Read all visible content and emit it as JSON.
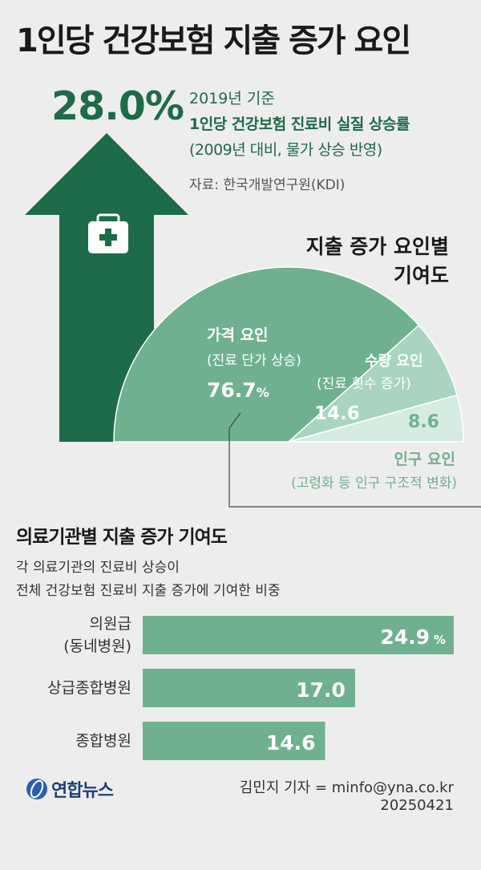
{
  "title": "1인당 건강보험 지출 증가 요인",
  "headline": {
    "value": "28.0%",
    "basis": "2019년 기준",
    "label": "1인당 건강보험 진료비 실질 상승률",
    "note": "(2009년 대비, 물가 상승 반영)",
    "source": "자료: 한국개발연구원(KDI)"
  },
  "contribution_title_line1": "지출 증가 요인별",
  "contribution_title_line2": "기여도",
  "colors": {
    "dark_green": "#1e6b4a",
    "mid_green": "#6fb18f",
    "light_green": "#a8d4c1",
    "pale_green": "#d6ebe1",
    "background": "#ededed"
  },
  "icons": [
    "medical-kit-icon",
    "yonhap-logo-icon"
  ],
  "facility_title": "의료기관별 지출 증가 기여도",
  "facility_desc_line1": "각 의료기관의 진료비 상승이",
  "facility_desc_line2": "전체 건강보험 진료비 지출 증가에 기여한 비중",
  "logo_text": "연합뉴스",
  "credit": "김민지 기자 = minfo@yna.co.kr",
  "date": "20250421",
  "chart_data": [
    {
      "type": "pie",
      "title": "지출 증가 요인별 기여도",
      "slices": [
        {
          "label": "가격 요인",
          "sublabel": "(진료 단가 상승)",
          "value": 76.7,
          "value_text": "76.7",
          "unit": "%"
        },
        {
          "label": "수량 요인",
          "sublabel": "(진료 횟수 증가)",
          "value": 14.6,
          "value_text": "14.6"
        },
        {
          "label": "인구 요인",
          "sublabel": "(고령화 등 인구 구조적 변화)",
          "value": 8.6,
          "value_text": "8.6"
        }
      ]
    },
    {
      "type": "bar",
      "title": "의료기관별 지출 증가 기여도",
      "categories": [
        [
          "의원급",
          "(동네병원)"
        ],
        [
          "상급종합병원"
        ],
        [
          "종합병원"
        ]
      ],
      "values": [
        24.9,
        17.0,
        14.6
      ],
      "value_text": [
        "24.9",
        "17.0",
        "14.6"
      ],
      "unit": "%"
    }
  ]
}
